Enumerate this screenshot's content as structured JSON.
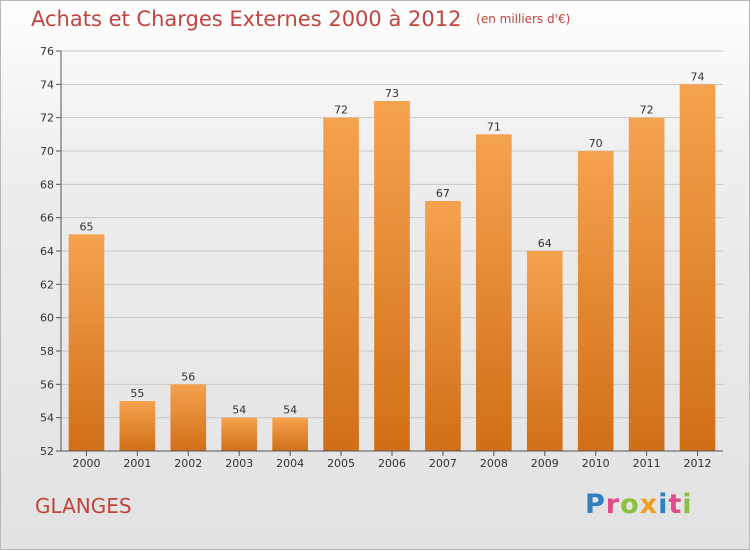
{
  "chart_data": {
    "type": "bar",
    "title": "Achats et Charges Externes 2000 à 2012",
    "subtitle": "(en milliers d'€)",
    "categories": [
      "2000",
      "2001",
      "2002",
      "2003",
      "2004",
      "2005",
      "2006",
      "2007",
      "2008",
      "2009",
      "2010",
      "2011",
      "2012"
    ],
    "values": [
      65,
      55,
      56,
      54,
      54,
      72,
      73,
      67,
      71,
      64,
      70,
      72,
      74
    ],
    "ylim": [
      52,
      76
    ],
    "yticks": [
      52,
      54,
      56,
      58,
      60,
      62,
      64,
      66,
      68,
      70,
      72,
      74,
      76
    ],
    "xlabel": "",
    "ylabel": "",
    "grid": true,
    "bar_color_light": "#f5a24e",
    "bar_color_dark": "#d16f17"
  },
  "footer": {
    "place": "GLANGES",
    "logo_letters": [
      {
        "ch": "P",
        "color": "#2f7fc1"
      },
      {
        "ch": "r",
        "color": "#e24a8a"
      },
      {
        "ch": "o",
        "color": "#8cbf3f"
      },
      {
        "ch": "x",
        "color": "#f0a020"
      },
      {
        "ch": "i",
        "color": "#2f7fc1"
      },
      {
        "ch": "t",
        "color": "#e24a8a"
      },
      {
        "ch": "i",
        "color": "#8cbf3f"
      }
    ]
  }
}
